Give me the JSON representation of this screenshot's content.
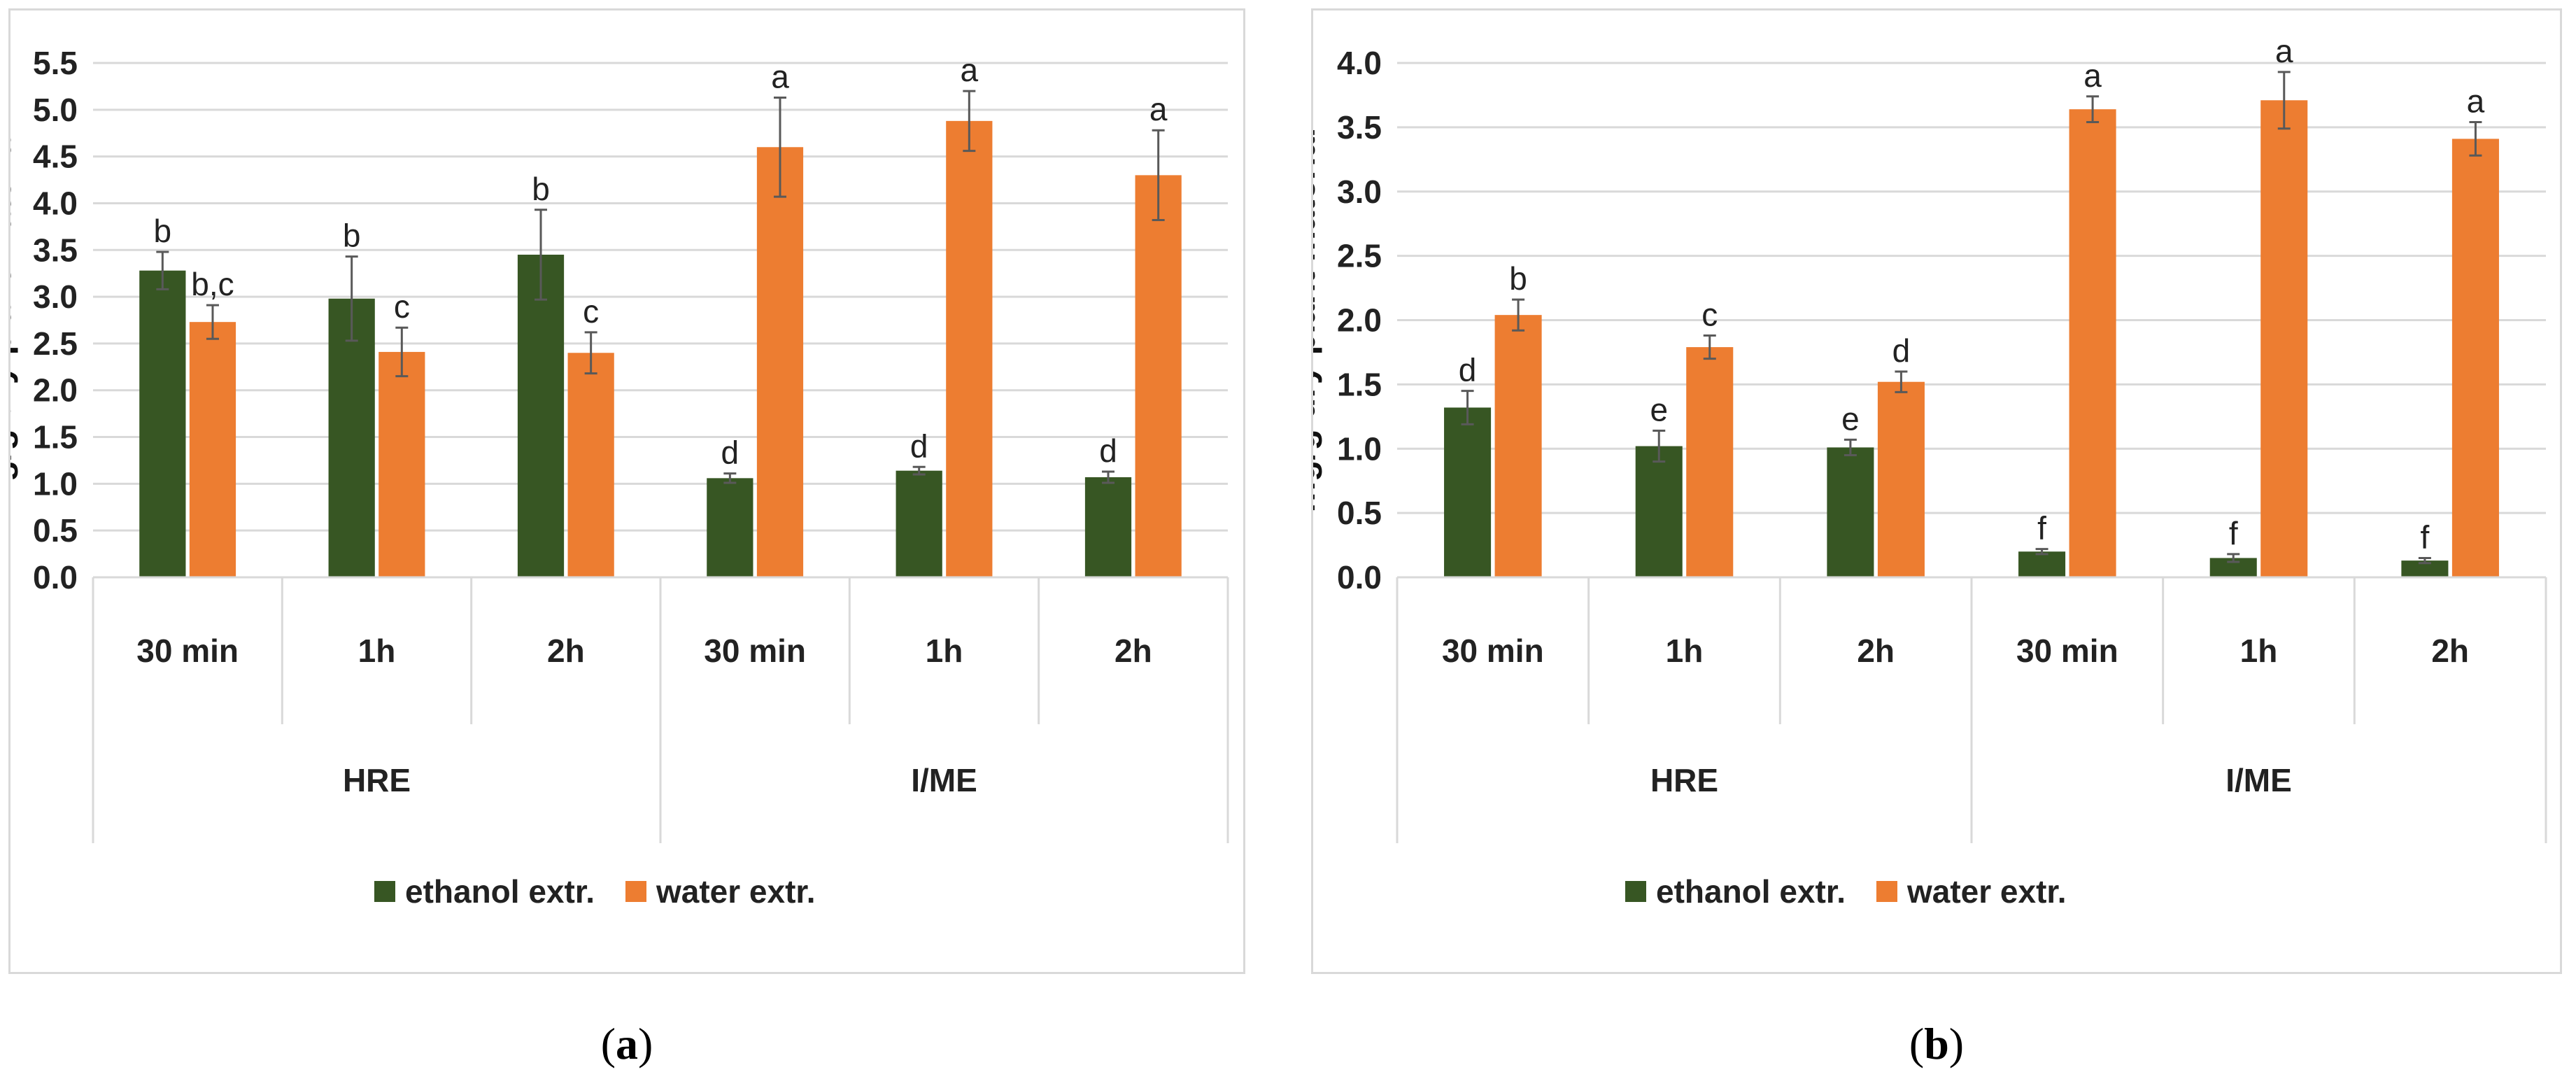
{
  "colors": {
    "ethanol": "#375623",
    "water": "#ED7D31",
    "grid": "#d9d9d9",
    "error": "#595959"
  },
  "chart_data": [
    {
      "id": "a",
      "type": "bar",
      "caption_letter": "a",
      "ylabel": "mg/g dry plant material",
      "ylim": [
        0,
        5.5
      ],
      "yticks": [
        "0.0",
        "0.5",
        "1.0",
        "1.5",
        "2.0",
        "2.5",
        "3.0",
        "3.5",
        "4.0",
        "4.5",
        "5.0",
        "5.5"
      ],
      "categories": [
        "30 min",
        "1h",
        "2h",
        "30 min",
        "1h",
        "2h"
      ],
      "groups": [
        {
          "label": "HRE",
          "span": 3
        },
        {
          "label": "I/ME",
          "span": 3
        }
      ],
      "series": [
        {
          "name": "ethanol extr.",
          "color_key": "ethanol",
          "values": [
            3.28,
            2.98,
            3.45,
            1.06,
            1.14,
            1.07
          ],
          "errors": [
            0.2,
            0.45,
            0.48,
            0.05,
            0.04,
            0.06
          ],
          "letters": [
            "b",
            "b",
            "b",
            "d",
            "d",
            "d"
          ]
        },
        {
          "name": "water extr.",
          "color_key": "water",
          "values": [
            2.73,
            2.41,
            2.4,
            4.6,
            4.88,
            4.3
          ],
          "errors": [
            0.18,
            0.26,
            0.22,
            0.53,
            0.32,
            0.48
          ],
          "letters": [
            "b,c",
            "c",
            "c",
            "a",
            "a",
            "a"
          ]
        }
      ]
    },
    {
      "id": "b",
      "type": "bar",
      "caption_letter": "b",
      "ylabel": "mg/g dry plant material",
      "ylim": [
        0,
        4.0
      ],
      "yticks": [
        "0.0",
        "0.5",
        "1.0",
        "1.5",
        "2.0",
        "2.5",
        "3.0",
        "3.5",
        "4.0"
      ],
      "categories": [
        "30 min",
        "1h",
        "2h",
        "30 min",
        "1h",
        "2h"
      ],
      "groups": [
        {
          "label": "HRE",
          "span": 3
        },
        {
          "label": "I/ME",
          "span": 3
        }
      ],
      "series": [
        {
          "name": "ethanol extr.",
          "color_key": "ethanol",
          "values": [
            1.32,
            1.02,
            1.01,
            0.2,
            0.15,
            0.13
          ],
          "errors": [
            0.13,
            0.12,
            0.06,
            0.02,
            0.03,
            0.02
          ],
          "letters": [
            "d",
            "e",
            "e",
            "f",
            "f",
            "f"
          ]
        },
        {
          "name": "water extr.",
          "color_key": "water",
          "values": [
            2.04,
            1.79,
            1.52,
            3.64,
            3.71,
            3.41
          ],
          "errors": [
            0.12,
            0.09,
            0.08,
            0.1,
            0.22,
            0.13
          ],
          "letters": [
            "b",
            "c",
            "d",
            "a",
            "a",
            "a"
          ]
        }
      ]
    }
  ]
}
